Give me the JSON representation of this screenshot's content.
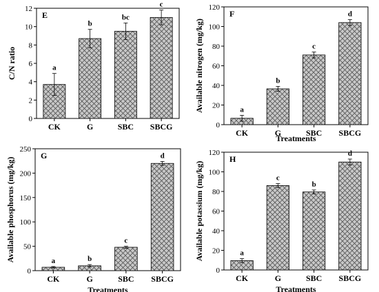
{
  "colors": {
    "bar_fill": "#c8c8c8",
    "hatch": "#555555",
    "axis": "#000000"
  },
  "chart_data": [
    {
      "type": "bar",
      "panel": "E",
      "categories": [
        "CK",
        "G",
        "SBC",
        "SBCG"
      ],
      "values": [
        3.7,
        8.7,
        9.5,
        11.0
      ],
      "errors": [
        1.2,
        1.0,
        0.9,
        0.8
      ],
      "significance": [
        "a",
        "b",
        "bc",
        "c"
      ],
      "xlabel": "",
      "ylabel": "C/N ratio",
      "ylim": [
        0,
        12
      ],
      "yticks": [
        0,
        2,
        4,
        6,
        8,
        10,
        12
      ]
    },
    {
      "type": "bar",
      "panel": "F",
      "categories": [
        "CK",
        "G",
        "SBC",
        "SBCG"
      ],
      "values": [
        6.5,
        36.5,
        71.0,
        104.0
      ],
      "errors": [
        3.0,
        2.5,
        3.0,
        3.0
      ],
      "significance": [
        "a",
        "b",
        "c",
        "d"
      ],
      "xlabel": "Treatments",
      "ylabel": "Available nitrogen (mg/kg)",
      "ylim": [
        0,
        120
      ],
      "yticks": [
        0,
        20,
        40,
        60,
        80,
        100,
        120
      ]
    },
    {
      "type": "bar",
      "panel": "G",
      "categories": [
        "CK",
        "G",
        "SBC",
        "SBCG"
      ],
      "values": [
        7,
        10,
        48,
        220
      ],
      "errors": [
        1.5,
        2.5,
        2.0,
        4.0
      ],
      "significance": [
        "a",
        "b",
        "c",
        "d"
      ],
      "xlabel": "Treatments",
      "ylabel": "Available phosphorus (mg/kg)",
      "ylim": [
        0,
        250
      ],
      "yticks": [
        0,
        50,
        100,
        150,
        200,
        250
      ]
    },
    {
      "type": "bar",
      "panel": "H",
      "categories": [
        "CK",
        "G",
        "SBC",
        "SBCG"
      ],
      "values": [
        9.5,
        86,
        79.5,
        110
      ],
      "errors": [
        2.0,
        2.0,
        2.0,
        3.0
      ],
      "significance": [
        "a",
        "c",
        "b",
        "d"
      ],
      "xlabel": "Treatments",
      "ylabel": "Available potassium (mg/kg)",
      "ylim": [
        0,
        120
      ],
      "yticks": [
        0,
        20,
        40,
        60,
        80,
        100,
        120
      ]
    }
  ]
}
